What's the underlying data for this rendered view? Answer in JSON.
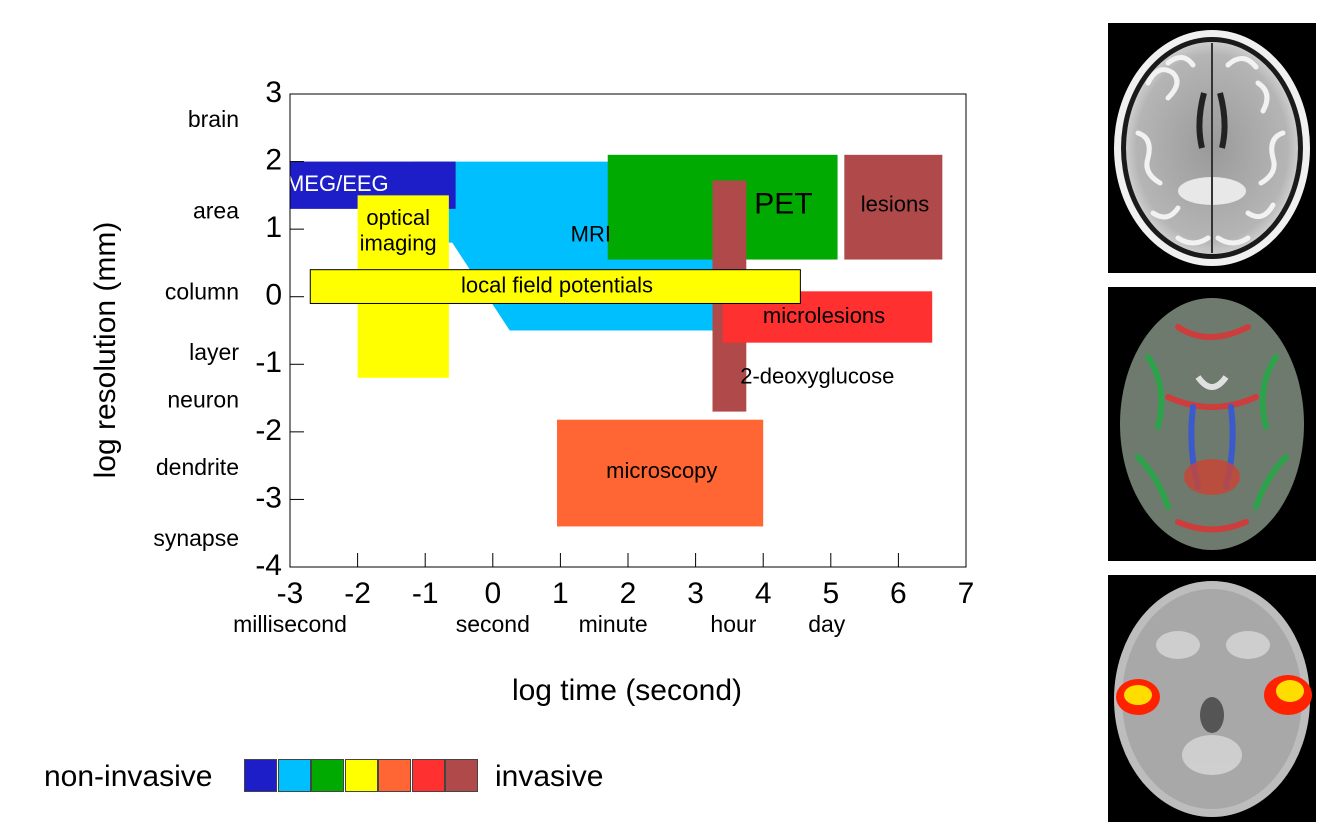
{
  "chart_data": {
    "type": "area",
    "xlabel": "log time (second)",
    "ylabel": "log resolution (mm)",
    "xlim": [
      -3,
      7
    ],
    "ylim": [
      -4,
      3
    ],
    "x_ticks": [
      -3,
      -2,
      -1,
      0,
      1,
      2,
      3,
      4,
      5,
      6,
      7
    ],
    "y_ticks": [
      3,
      2,
      1,
      0,
      -1,
      -2,
      -3,
      -4
    ],
    "x_named_ticks": [
      {
        "label": "millisecond",
        "x": -3
      },
      {
        "label": "second",
        "x": 0
      },
      {
        "label": "minute",
        "x": 1.78
      },
      {
        "label": "hour",
        "x": 3.56
      },
      {
        "label": "day",
        "x": 4.94
      }
    ],
    "y_named_ticks": [
      {
        "label": "brain",
        "y": 2.6
      },
      {
        "label": "area",
        "y": 1.25
      },
      {
        "label": "column",
        "y": 0.05
      },
      {
        "label": "layer",
        "y": -0.85
      },
      {
        "label": "neuron",
        "y": -1.55
      },
      {
        "label": "dendrite",
        "y": -2.55
      },
      {
        "label": "synapse",
        "y": -3.6
      }
    ],
    "regions": [
      {
        "label": "MRI",
        "color": "#00BFFF",
        "polygon": [
          [
            -1.2,
            2.0
          ],
          [
            3.7,
            2.0
          ],
          [
            3.7,
            -0.5
          ],
          [
            0.25,
            -0.5
          ],
          [
            -0.6,
            0.8
          ],
          [
            -1.2,
            0.8
          ]
        ],
        "label_at": [
          1.45,
          0.9
        ]
      },
      {
        "label": "PET",
        "color": "#00AA00",
        "rect": [
          1.7,
          0.55,
          5.1,
          2.1
        ],
        "label_at": [
          4.3,
          1.35
        ]
      },
      {
        "label": "lesions",
        "color": "#B04A4A",
        "rect": [
          5.2,
          0.55,
          6.65,
          2.1
        ],
        "label_at": [
          5.95,
          1.35
        ]
      },
      {
        "label": "MEG/EEG",
        "color": "#1E1EC8",
        "rect": [
          -3.0,
          1.3,
          -0.55,
          2.0
        ],
        "label_at": [
          -2.3,
          1.65
        ],
        "light_text": true
      },
      {
        "label": "optical imaging",
        "color": "#FFFF00",
        "rect": [
          -2.0,
          -1.2,
          -0.65,
          1.5
        ],
        "label_lines": [
          "optical",
          "imaging"
        ],
        "label_at": [
          -1.4,
          1.0
        ]
      },
      {
        "label": "2-deoxyglucose",
        "color": "#B04A4A",
        "rect": [
          3.25,
          -1.7,
          3.75,
          1.72
        ],
        "label_at": [
          4.8,
          -1.2
        ]
      },
      {
        "label": "microlesions",
        "color": "#FF3030",
        "rect": [
          3.4,
          -0.68,
          6.5,
          0.08
        ],
        "label_at": [
          4.9,
          -0.3
        ]
      },
      {
        "label": "local field potentials",
        "color": "#FFFF00",
        "rect": [
          -2.7,
          -0.1,
          4.55,
          0.4
        ],
        "label_at": [
          0.95,
          0.15
        ],
        "outlined": true
      },
      {
        "label": "microscopy",
        "color": "#FF6633",
        "rect": [
          0.95,
          -3.4,
          4.0,
          -1.82
        ],
        "label_at": [
          2.5,
          -2.6
        ]
      }
    ]
  },
  "legend": {
    "left_label": "non-invasive",
    "right_label": "invasive",
    "colors": [
      "#1E1EC8",
      "#00BFFF",
      "#00AA00",
      "#FFFF00",
      "#FF6633",
      "#FF3030",
      "#B04A4A"
    ]
  },
  "brain_images": [
    {
      "kind": "structural MRI",
      "colors": [
        "#000000",
        "#ffffff",
        "#8a8a8a"
      ]
    },
    {
      "kind": "diffusion MRI",
      "colors": [
        "#000000",
        "#7a8a7a",
        "#22aa44",
        "#dd3333",
        "#3355dd"
      ]
    },
    {
      "kind": "functional MRI",
      "colors": [
        "#000000",
        "#bbbbbb",
        "#ff2200",
        "#ffdd00"
      ]
    }
  ]
}
